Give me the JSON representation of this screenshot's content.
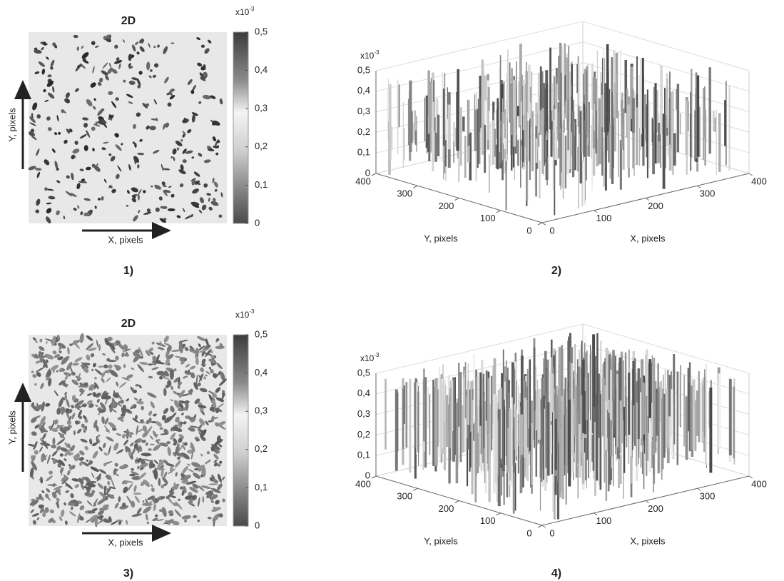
{
  "panels": [
    {
      "kind": "2d",
      "title": "2D",
      "label": "1)",
      "x_label": "X, pixels",
      "y_label": "Y, pixels",
      "exponent_base": "x10",
      "exponent_power": "-3",
      "colorbar_ticks": [
        0,
        {
          "value": 0.1,
          "label": "0,1"
        },
        {
          "value": 0.2,
          "label": "0,2"
        },
        {
          "value": 0.3,
          "label": "0,3"
        },
        {
          "value": 0.4,
          "label": "0,4"
        },
        {
          "value": 0.5,
          "label": "0,5"
        }
      ]
    },
    {
      "kind": "3d",
      "label": "2)",
      "x_label": "X, pixels",
      "y_label": "Y, pixels",
      "exponent_base": "x10",
      "exponent_power": "-3",
      "zticks": [
        0,
        {
          "value": 0.1,
          "label": "0,1"
        },
        {
          "value": 0.2,
          "label": "0,2"
        },
        {
          "value": 0.3,
          "label": "0,3"
        },
        {
          "value": 0.4,
          "label": "0,4"
        },
        {
          "value": 0.5,
          "label": "0,5"
        }
      ],
      "xticks": [
        0,
        100,
        200,
        300,
        400
      ],
      "yticks": [
        0,
        100,
        200,
        300,
        400
      ]
    },
    {
      "kind": "2d",
      "title": "2D",
      "label": "3)",
      "x_label": "X, pixels",
      "y_label": "Y, pixels",
      "exponent_base": "x10",
      "exponent_power": "-3",
      "colorbar_ticks": [
        0,
        {
          "value": 0.1,
          "label": "0,1"
        },
        {
          "value": 0.2,
          "label": "0,2"
        },
        {
          "value": 0.3,
          "label": "0,3"
        },
        {
          "value": 0.4,
          "label": "0,4"
        },
        {
          "value": 0.5,
          "label": "0,5"
        }
      ]
    },
    {
      "kind": "3d",
      "label": "4)",
      "x_label": "X, pixels",
      "y_label": "Y, pixels",
      "exponent_base": "x10",
      "exponent_power": "-3",
      "zticks": [
        0,
        {
          "value": 0.1,
          "label": "0,1"
        },
        {
          "value": 0.2,
          "label": "0,2"
        },
        {
          "value": 0.3,
          "label": "0,3"
        },
        {
          "value": 0.4,
          "label": "0,4"
        },
        {
          "value": 0.5,
          "label": "0,5"
        }
      ],
      "xticks": [
        0,
        100,
        200,
        300,
        400
      ],
      "yticks": [
        0,
        100,
        200,
        300,
        400
      ]
    }
  ]
}
